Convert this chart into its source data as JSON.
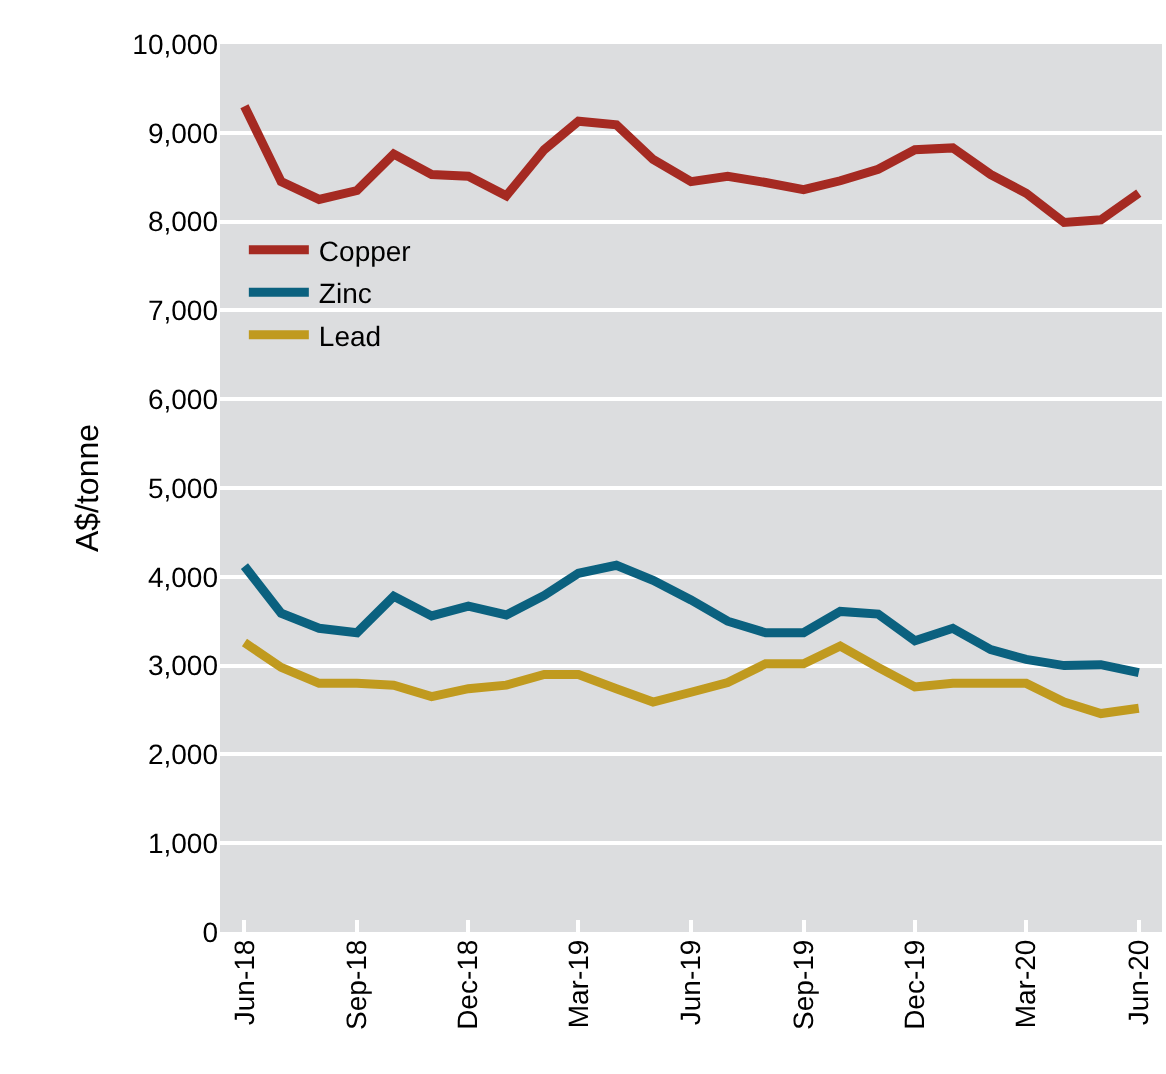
{
  "chart_data": {
    "type": "line",
    "ylabel": "A$/tonne",
    "x": [
      "2018-06",
      "2018-07",
      "2018-08",
      "2018-09",
      "2018-10",
      "2018-11",
      "2018-12",
      "2019-01",
      "2019-02",
      "2019-03",
      "2019-04",
      "2019-05",
      "2019-06",
      "2019-07",
      "2019-08",
      "2019-09",
      "2019-10",
      "2019-11",
      "2019-12",
      "2020-01",
      "2020-02",
      "2020-03",
      "2020-04",
      "2020-05",
      "2020-06"
    ],
    "series": [
      {
        "name": "Copper",
        "color": "#a52a22",
        "values": [
          9300,
          8450,
          8250,
          8350,
          8760,
          8530,
          8510,
          8290,
          8810,
          9130,
          9090,
          8700,
          8450,
          8510,
          8440,
          8360,
          8460,
          8590,
          8810,
          8830,
          8530,
          8320,
          7990,
          8020,
          8320
        ]
      },
      {
        "name": "Zinc",
        "color": "#0b617f",
        "values": [
          4120,
          3590,
          3420,
          3370,
          3780,
          3560,
          3670,
          3570,
          3790,
          4040,
          4130,
          3960,
          3740,
          3500,
          3370,
          3370,
          3610,
          3580,
          3280,
          3420,
          3180,
          3070,
          3000,
          3010,
          2920
        ]
      },
      {
        "name": "Lead",
        "color": "#c09a1f",
        "values": [
          3260,
          2980,
          2800,
          2800,
          2780,
          2650,
          2740,
          2780,
          2900,
          2900,
          2740,
          2590,
          2700,
          2810,
          3020,
          3020,
          3220,
          2980,
          2760,
          2800,
          2800,
          2800,
          2590,
          2460,
          2520
        ]
      }
    ],
    "xlim": [
      "2018-05-12",
      "2020-06-20"
    ],
    "xticks": [
      {
        "value": "2018-06",
        "label": "Jun-18"
      },
      {
        "value": "2018-09",
        "label": "Sep-18"
      },
      {
        "value": "2018-12",
        "label": "Dec-18"
      },
      {
        "value": "2019-03",
        "label": "Mar-19"
      },
      {
        "value": "2019-06",
        "label": "Jun-19"
      },
      {
        "value": "2019-09",
        "label": "Sep-19"
      },
      {
        "value": "2019-12",
        "label": "Dec-19"
      },
      {
        "value": "2020-03",
        "label": "Mar-20"
      },
      {
        "value": "2020-06",
        "label": "Jun-20"
      }
    ],
    "ylim": [
      0,
      10000
    ],
    "yticks": [
      0,
      {
        "value": 1000,
        "label": "1,000"
      },
      {
        "value": 2000,
        "label": "2,000"
      },
      {
        "value": 3000,
        "label": "3,000"
      },
      {
        "value": 4000,
        "label": "4,000"
      },
      {
        "value": 5000,
        "label": "5,000"
      },
      {
        "value": 6000,
        "label": "6,000"
      },
      {
        "value": 7000,
        "label": "7,000"
      },
      {
        "value": 8000,
        "label": "8,000"
      },
      {
        "value": 9000,
        "label": "9,000"
      },
      {
        "value": 10000,
        "label": "10,000"
      }
    ],
    "grid": "y",
    "legend": "left",
    "marker": "none",
    "line_style": "solid"
  }
}
